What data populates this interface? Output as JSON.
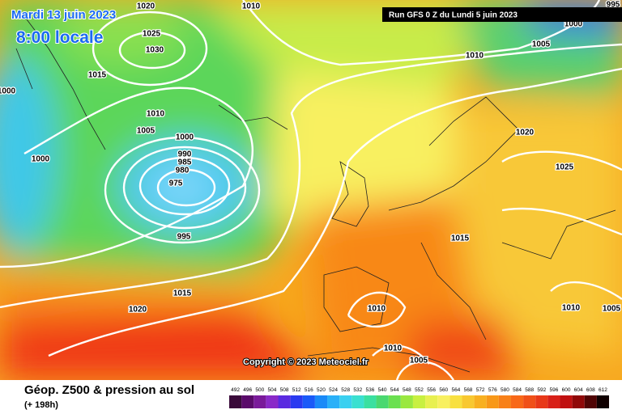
{
  "header": {
    "date": "Mardi 13 juin 2023",
    "time": "8:00 locale",
    "run": "Run GFS 0 Z du Lundi 5 juin 2023"
  },
  "map": {
    "isobar_labels": [
      "1020",
      "1010",
      "995",
      "1000",
      "1005",
      "1010",
      "1025",
      "1030",
      "1015",
      "1000",
      "1010",
      "1005",
      "1000",
      "1000",
      "990",
      "985",
      "980",
      "975",
      "995",
      "1020",
      "1025",
      "1015",
      "1015",
      "1020",
      "1010",
      "1010",
      "1005",
      "1010",
      "1005"
    ],
    "copyright": "Copyright © 2023 Meteociel.fr"
  },
  "footer": {
    "title": "Géop. Z500 & pression au sol",
    "lead": "(+ 198h)",
    "scale": {
      "labels": [
        "492",
        "496",
        "500",
        "504",
        "508",
        "512",
        "516",
        "520",
        "524",
        "528",
        "532",
        "536",
        "540",
        "544",
        "548",
        "552",
        "556",
        "560",
        "564",
        "568",
        "572",
        "576",
        "580",
        "584",
        "588",
        "592",
        "596",
        "600",
        "604",
        "608",
        "612"
      ],
      "colors": [
        "#3a0a3a",
        "#5a0a6a",
        "#7a1a9a",
        "#8a2ac8",
        "#5a2ae0",
        "#2a3af0",
        "#1a5af8",
        "#1a8af8",
        "#2ab0f8",
        "#3ad0f0",
        "#3ae0d0",
        "#3ae0a0",
        "#4ad870",
        "#6ae050",
        "#9ae840",
        "#c8f040",
        "#e8f050",
        "#f8f060",
        "#f8e040",
        "#f8c830",
        "#f8b020",
        "#f89818",
        "#f88018",
        "#f86818",
        "#f05018",
        "#e83818",
        "#d82018",
        "#c01010",
        "#900808",
        "#500404",
        "#100000"
      ]
    }
  }
}
